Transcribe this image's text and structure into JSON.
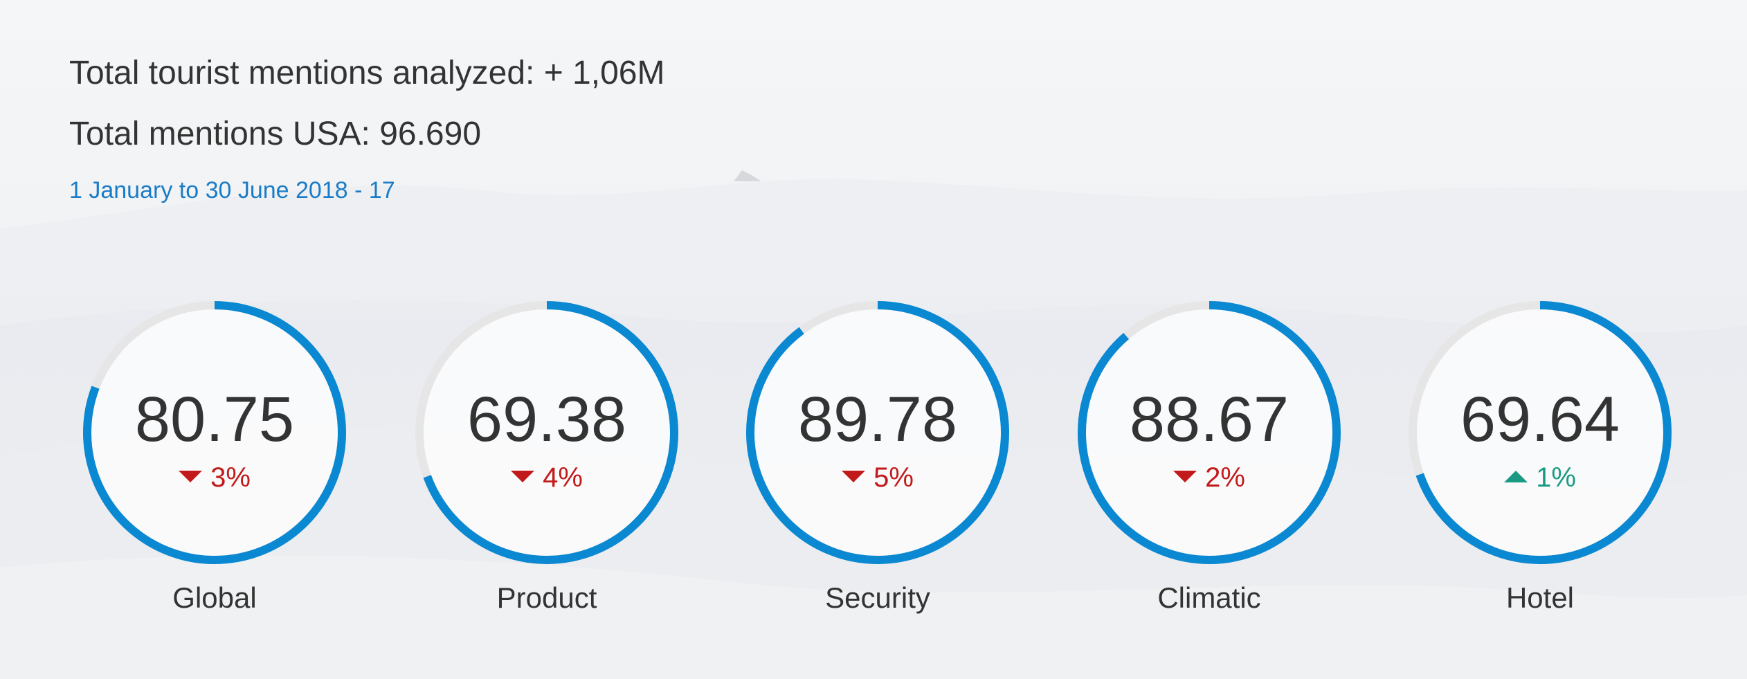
{
  "header": {
    "total_tourist_mentions": "Total tourist mentions analyzed: + 1,06M",
    "total_mentions_usa": "Total mentions USA: 96.690",
    "date_range": "1 January to 30 June 2018 - 17"
  },
  "colors": {
    "ring_fill": "#0a88d1",
    "ring_track": "#e6e6e6",
    "down": "#c21a1a",
    "up": "#1a9a82",
    "date_text": "#1a7cc7",
    "text": "#333333"
  },
  "gauges": [
    {
      "label": "Global",
      "value": "80.75",
      "score": 80.75,
      "delta": "3%",
      "direction": "down",
      "direction_icon": "triangle-down-icon"
    },
    {
      "label": "Product",
      "value": "69.38",
      "score": 69.38,
      "delta": "4%",
      "direction": "down",
      "direction_icon": "triangle-down-icon"
    },
    {
      "label": "Security",
      "value": "89.78",
      "score": 89.78,
      "delta": "5%",
      "direction": "down",
      "direction_icon": "triangle-down-icon"
    },
    {
      "label": "Climatic",
      "value": "88.67",
      "score": 88.67,
      "delta": "2%",
      "direction": "down",
      "direction_icon": "triangle-down-icon"
    },
    {
      "label": "Hotel",
      "value": "69.64",
      "score": 69.64,
      "delta": "1%",
      "direction": "up",
      "direction_icon": "triangle-up-icon"
    }
  ]
}
